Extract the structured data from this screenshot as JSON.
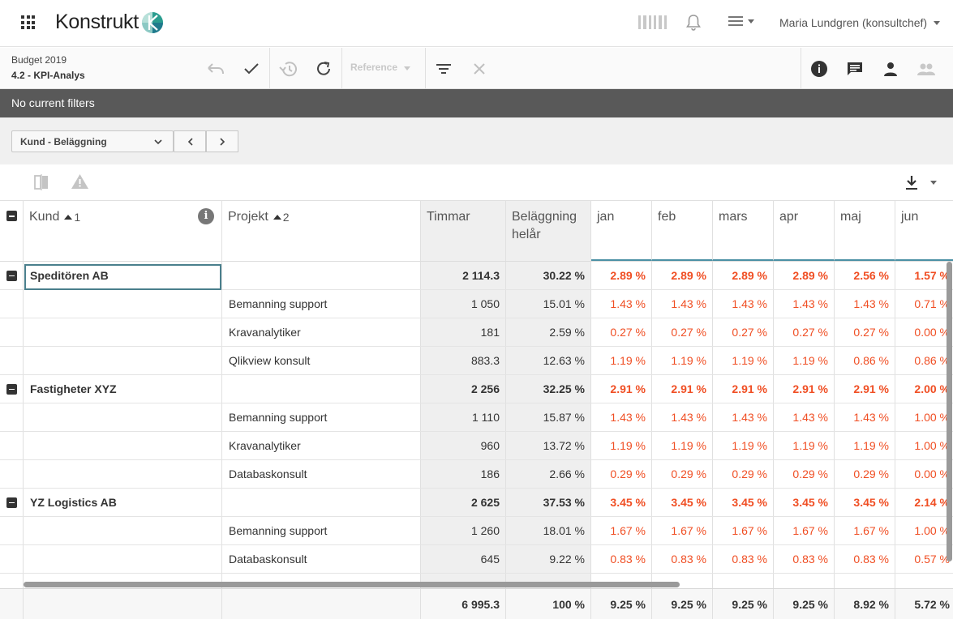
{
  "app": {
    "logo_text": "Konstrukt",
    "user_name": "Maria Lundgren (konsultchef)"
  },
  "breadcrumb": {
    "budget": "Budget 2019",
    "view": "4.2 - KPI-Analys"
  },
  "toolbar": {
    "reference_label": "Reference"
  },
  "filters": {
    "status": "No current filters"
  },
  "view_selector": {
    "selected": "Kund - Beläggning"
  },
  "table": {
    "headers": {
      "kund": "Kund",
      "kund_sort": "1",
      "projekt": "Projekt",
      "projekt_sort": "2",
      "timmar": "Timmar",
      "belaggning": "Beläggning helår",
      "months": [
        "jan",
        "feb",
        "mars",
        "apr",
        "maj",
        "jun"
      ]
    },
    "rows": [
      {
        "type": "group",
        "kund": "Speditören AB",
        "projekt": "",
        "timmar": "2 114.3",
        "belaggning": "30.22 %",
        "months": [
          "2.89 %",
          "2.89 %",
          "2.89 %",
          "2.89 %",
          "2.56 %",
          "1.57 %"
        ]
      },
      {
        "type": "item",
        "kund": "",
        "projekt": "Bemanning support",
        "timmar": "1 050",
        "belaggning": "15.01 %",
        "months": [
          "1.43 %",
          "1.43 %",
          "1.43 %",
          "1.43 %",
          "1.43 %",
          "0.71 %"
        ]
      },
      {
        "type": "item",
        "kund": "",
        "projekt": "Kravanalytiker",
        "timmar": "181",
        "belaggning": "2.59 %",
        "months": [
          "0.27 %",
          "0.27 %",
          "0.27 %",
          "0.27 %",
          "0.27 %",
          "0.00 %"
        ]
      },
      {
        "type": "item",
        "kund": "",
        "projekt": "Qlikview konsult",
        "timmar": "883.3",
        "belaggning": "12.63 %",
        "months": [
          "1.19 %",
          "1.19 %",
          "1.19 %",
          "1.19 %",
          "0.86 %",
          "0.86 %"
        ]
      },
      {
        "type": "group",
        "kund": "Fastigheter XYZ",
        "projekt": "",
        "timmar": "2 256",
        "belaggning": "32.25 %",
        "months": [
          "2.91 %",
          "2.91 %",
          "2.91 %",
          "2.91 %",
          "2.91 %",
          "2.00 %"
        ]
      },
      {
        "type": "item",
        "kund": "",
        "projekt": "Bemanning support",
        "timmar": "1 110",
        "belaggning": "15.87 %",
        "months": [
          "1.43 %",
          "1.43 %",
          "1.43 %",
          "1.43 %",
          "1.43 %",
          "1.00 %"
        ]
      },
      {
        "type": "item",
        "kund": "",
        "projekt": "Kravanalytiker",
        "timmar": "960",
        "belaggning": "13.72 %",
        "months": [
          "1.19 %",
          "1.19 %",
          "1.19 %",
          "1.19 %",
          "1.19 %",
          "1.00 %"
        ]
      },
      {
        "type": "item",
        "kund": "",
        "projekt": "Databaskonsult",
        "timmar": "186",
        "belaggning": "2.66 %",
        "months": [
          "0.29 %",
          "0.29 %",
          "0.29 %",
          "0.29 %",
          "0.29 %",
          "0.00 %"
        ]
      },
      {
        "type": "group",
        "kund": "YZ Logistics AB",
        "projekt": "",
        "timmar": "2 625",
        "belaggning": "37.53 %",
        "months": [
          "3.45 %",
          "3.45 %",
          "3.45 %",
          "3.45 %",
          "3.45 %",
          "2.14 %"
        ]
      },
      {
        "type": "item",
        "kund": "",
        "projekt": "Bemanning support",
        "timmar": "1 260",
        "belaggning": "18.01 %",
        "months": [
          "1.67 %",
          "1.67 %",
          "1.67 %",
          "1.67 %",
          "1.67 %",
          "1.00 %"
        ]
      },
      {
        "type": "item",
        "kund": "",
        "projekt": "Databaskonsult",
        "timmar": "645",
        "belaggning": "9.22 %",
        "months": [
          "0.83 %",
          "0.83 %",
          "0.83 %",
          "0.83 %",
          "0.83 %",
          "0.57 %"
        ]
      }
    ],
    "totals": {
      "timmar": "6 995.3",
      "belaggning": "100 %",
      "months": [
        "9.25 %",
        "9.25 %",
        "9.25 %",
        "9.25 %",
        "8.92 %",
        "5.72 %"
      ]
    }
  },
  "colors": {
    "accent": "#4a90a4",
    "negative": "#f04e23",
    "filterbar": "#595959"
  }
}
